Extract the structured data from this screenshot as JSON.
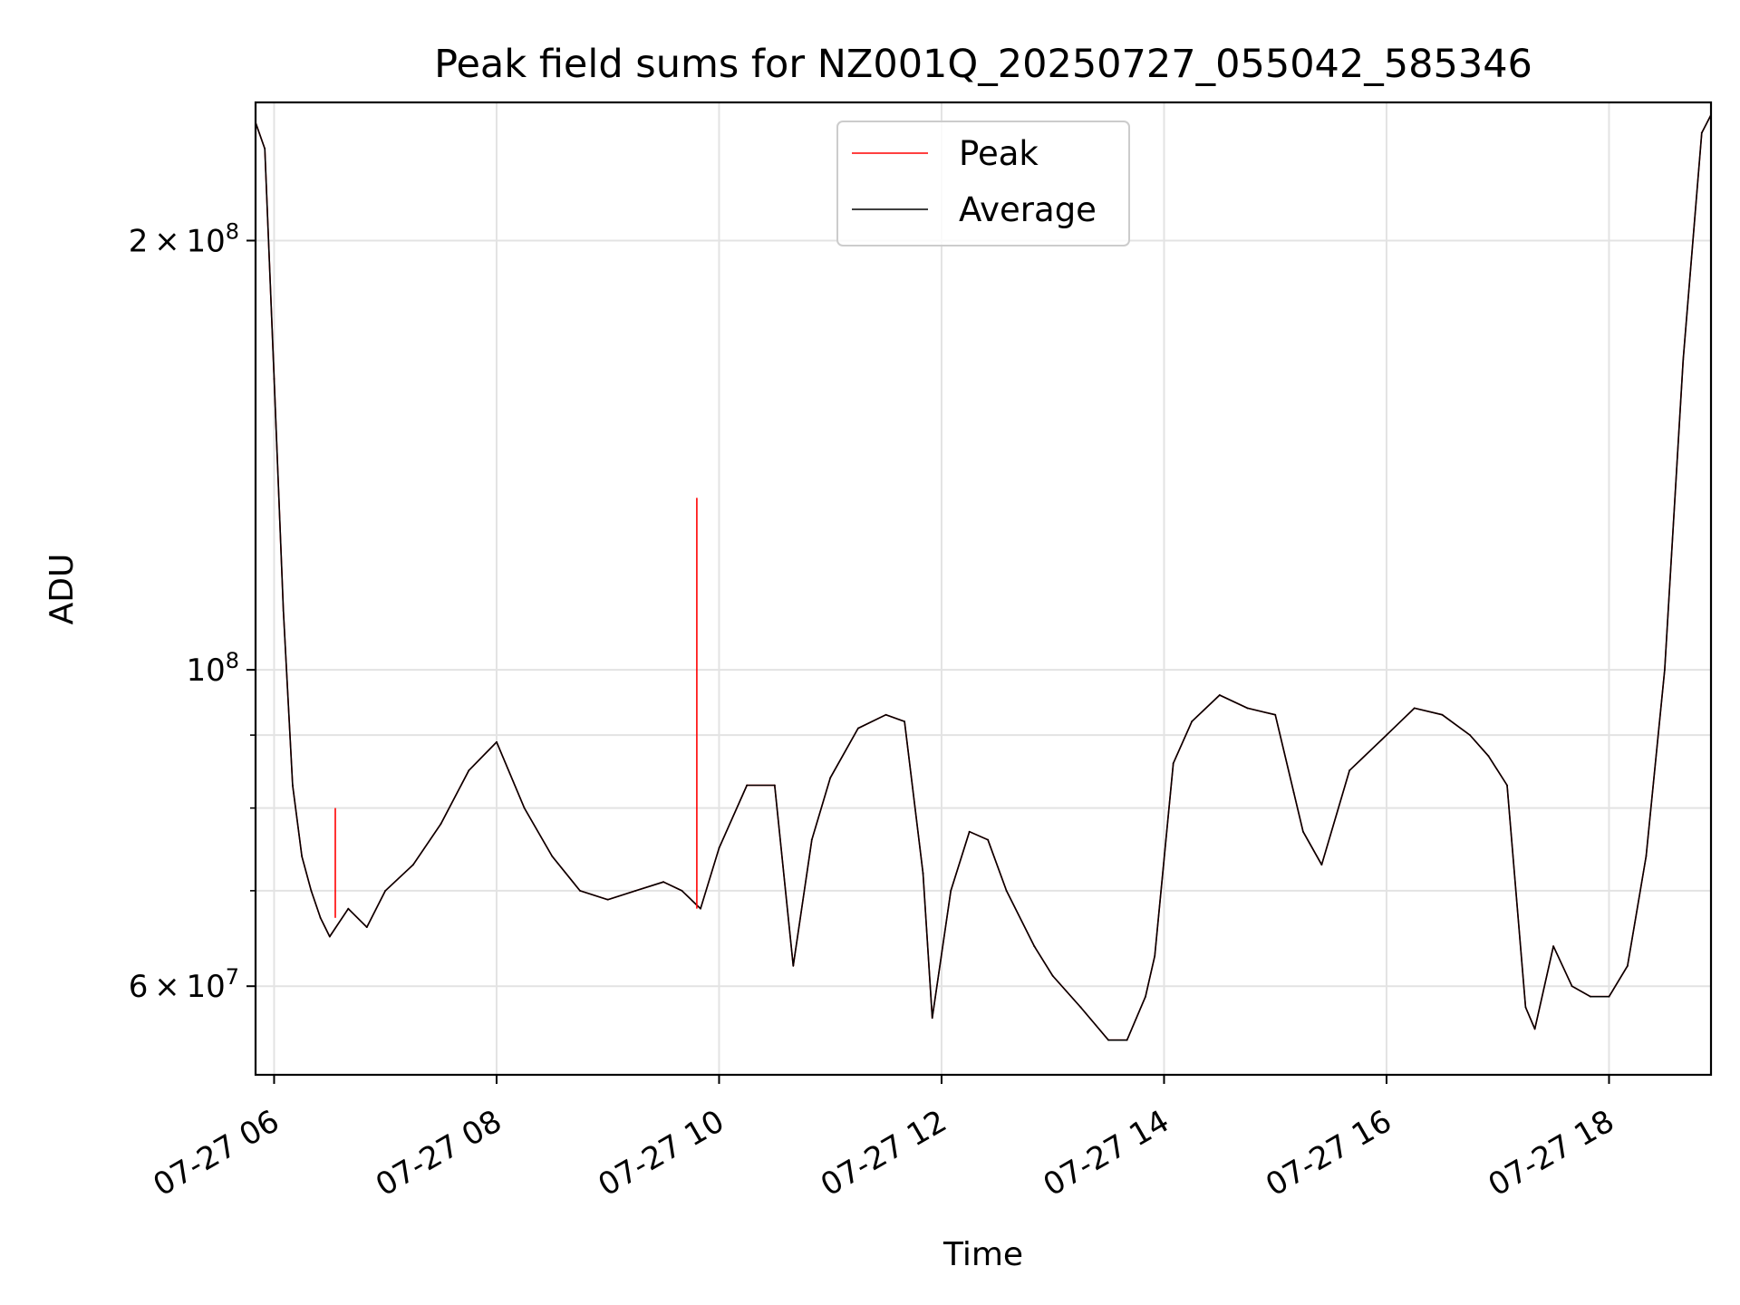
{
  "chart_data": {
    "type": "line",
    "title": "Peak field sums for NZ001Q_20250727_055042_585346",
    "xlabel": "Time",
    "ylabel": "ADU",
    "yscale": "log",
    "ylim": [
      52000000,
      250000000
    ],
    "xlim": [
      "2025-07-27T05:50",
      "2025-07-27T18:55"
    ],
    "grid": true,
    "legend_position": "upper center",
    "x_tick_labels": [
      "07-27 06",
      "07-27 08",
      "07-27 10",
      "07-27 12",
      "07-27 14",
      "07-27 16",
      "07-27 18"
    ],
    "x_ticks": [
      "2025-07-27T06:00",
      "2025-07-27T08:00",
      "2025-07-27T10:00",
      "2025-07-27T12:00",
      "2025-07-27T14:00",
      "2025-07-27T16:00",
      "2025-07-27T18:00"
    ],
    "y_tick_labels": [
      {
        "value": 60000000,
        "mantissa": "6",
        "exponent": "7"
      },
      {
        "value": 100000000,
        "mantissa": "",
        "exponent": "8"
      },
      {
        "value": 200000000,
        "mantissa": "2",
        "exponent": "8"
      }
    ],
    "y_minor_ticks": [
      70000000,
      80000000,
      90000000
    ],
    "x": [
      "2025-07-27T05:50",
      "2025-07-27T05:55",
      "2025-07-27T06:00",
      "2025-07-27T06:05",
      "2025-07-27T06:10",
      "2025-07-27T06:15",
      "2025-07-27T06:20",
      "2025-07-27T06:25",
      "2025-07-27T06:30",
      "2025-07-27T06:40",
      "2025-07-27T06:50",
      "2025-07-27T07:00",
      "2025-07-27T07:15",
      "2025-07-27T07:30",
      "2025-07-27T07:45",
      "2025-07-27T08:00",
      "2025-07-27T08:15",
      "2025-07-27T08:30",
      "2025-07-27T08:45",
      "2025-07-27T09:00",
      "2025-07-27T09:15",
      "2025-07-27T09:30",
      "2025-07-27T09:40",
      "2025-07-27T09:50",
      "2025-07-27T10:00",
      "2025-07-27T10:15",
      "2025-07-27T10:30",
      "2025-07-27T10:40",
      "2025-07-27T10:50",
      "2025-07-27T11:00",
      "2025-07-27T11:15",
      "2025-07-27T11:30",
      "2025-07-27T11:40",
      "2025-07-27T11:50",
      "2025-07-27T11:55",
      "2025-07-27T12:05",
      "2025-07-27T12:15",
      "2025-07-27T12:25",
      "2025-07-27T12:35",
      "2025-07-27T12:50",
      "2025-07-27T13:00",
      "2025-07-27T13:15",
      "2025-07-27T13:30",
      "2025-07-27T13:40",
      "2025-07-27T13:50",
      "2025-07-27T13:55",
      "2025-07-27T14:05",
      "2025-07-27T14:15",
      "2025-07-27T14:30",
      "2025-07-27T14:45",
      "2025-07-27T15:00",
      "2025-07-27T15:10",
      "2025-07-27T15:15",
      "2025-07-27T15:25",
      "2025-07-27T15:40",
      "2025-07-27T16:00",
      "2025-07-27T16:15",
      "2025-07-27T16:30",
      "2025-07-27T16:45",
      "2025-07-27T16:55",
      "2025-07-27T17:05",
      "2025-07-27T17:15",
      "2025-07-27T17:20",
      "2025-07-27T17:30",
      "2025-07-27T17:40",
      "2025-07-27T17:50",
      "2025-07-27T18:00",
      "2025-07-27T18:10",
      "2025-07-27T18:20",
      "2025-07-27T18:30",
      "2025-07-27T18:40",
      "2025-07-27T18:50",
      "2025-07-27T18:55"
    ],
    "series": [
      {
        "name": "Peak",
        "color": "#ff0000",
        "values": [
          242000000,
          232000000,
          160000000,
          110000000,
          83000000,
          74000000,
          70000000,
          67000000,
          65000000,
          68000000,
          66000000,
          70000000,
          73000000,
          78000000,
          85000000,
          89000000,
          80000000,
          74000000,
          70000000,
          69000000,
          70000000,
          71000000,
          70000000,
          68000000,
          75000000,
          83000000,
          83000000,
          62000000,
          76000000,
          84000000,
          91000000,
          93000000,
          92000000,
          72000000,
          57000000,
          70000000,
          77000000,
          76000000,
          70000000,
          64000000,
          61000000,
          58000000,
          55000000,
          55000000,
          59000000,
          63000000,
          86000000,
          92000000,
          96000000,
          94000000,
          93000000,
          82000000,
          77000000,
          73000000,
          85000000,
          90000000,
          94000000,
          93000000,
          90000000,
          87000000,
          83000000,
          58000000,
          56000000,
          64000000,
          60000000,
          59000000,
          59000000,
          62000000,
          74000000,
          100000000,
          165000000,
          238000000,
          245000000
        ]
      },
      {
        "name": "Average",
        "color": "#000000",
        "values": [
          242000000,
          232000000,
          160000000,
          110000000,
          83000000,
          74000000,
          70000000,
          67000000,
          65000000,
          68000000,
          66000000,
          70000000,
          73000000,
          78000000,
          85000000,
          89000000,
          80000000,
          74000000,
          70000000,
          69000000,
          70000000,
          71000000,
          70000000,
          68000000,
          75000000,
          83000000,
          83000000,
          62000000,
          76000000,
          84000000,
          91000000,
          93000000,
          92000000,
          72000000,
          57000000,
          70000000,
          77000000,
          76000000,
          70000000,
          64000000,
          61000000,
          58000000,
          55000000,
          55000000,
          59000000,
          63000000,
          86000000,
          92000000,
          96000000,
          94000000,
          93000000,
          82000000,
          77000000,
          73000000,
          85000000,
          90000000,
          94000000,
          93000000,
          90000000,
          87000000,
          83000000,
          58000000,
          56000000,
          64000000,
          60000000,
          59000000,
          59000000,
          62000000,
          74000000,
          100000000,
          165000000,
          238000000,
          245000000
        ]
      }
    ],
    "annotations": [
      {
        "series": "Peak",
        "x": "2025-07-27T09:48",
        "y": 132000000,
        "base": 68000000
      },
      {
        "series": "Peak",
        "x": "2025-07-27T06:33",
        "y": 80000000,
        "base": 67000000
      }
    ]
  }
}
